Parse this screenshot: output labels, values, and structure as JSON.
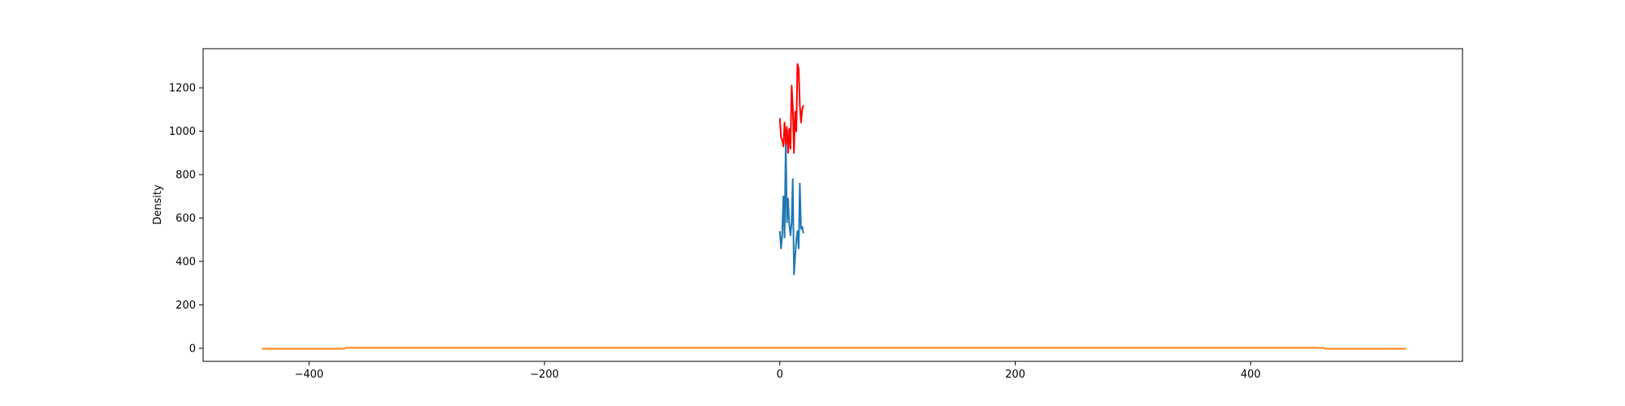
{
  "chart_data": {
    "type": "line",
    "title": "",
    "xlabel": "",
    "ylabel": "Density",
    "xlim": [
      -490,
      580
    ],
    "ylim": [
      -60,
      1380
    ],
    "x_ticks": [
      -400,
      -200,
      0,
      200,
      400
    ],
    "x_tick_labels": [
      "−400",
      "−200",
      "0",
      "200",
      "400"
    ],
    "y_ticks": [
      0,
      200,
      400,
      600,
      800,
      1000,
      1200
    ],
    "y_tick_labels": [
      "0",
      "200",
      "400",
      "600",
      "800",
      "1000",
      "1200"
    ],
    "grid": false,
    "legend": "none",
    "series": [
      {
        "color": "#1f77b4",
        "x": [
          0,
          1,
          2,
          3,
          4,
          5,
          6,
          7,
          8,
          9,
          10,
          11,
          12,
          13,
          14,
          15,
          16,
          17,
          18,
          19,
          20
        ],
        "y": [
          540,
          460,
          520,
          700,
          510,
          960,
          580,
          690,
          570,
          520,
          580,
          780,
          340,
          420,
          500,
          540,
          460,
          760,
          550,
          560,
          530
        ]
      },
      {
        "color": "#ff0000",
        "x": [
          0,
          1,
          2,
          3,
          4,
          5,
          6,
          7,
          8,
          9,
          10,
          11,
          12,
          13,
          14,
          15,
          16,
          17,
          18,
          19,
          20
        ],
        "y": [
          1060,
          970,
          960,
          930,
          1040,
          940,
          1020,
          900,
          1010,
          920,
          1210,
          1120,
          900,
          1090,
          1000,
          1310,
          1290,
          1120,
          1040,
          1100,
          1120
        ]
      },
      {
        "color": "#ff7f0e",
        "x": [
          -440,
          -370,
          -369,
          462,
          463,
          532
        ],
        "y": [
          -2,
          -2,
          2,
          2,
          -2,
          -2
        ]
      }
    ]
  }
}
